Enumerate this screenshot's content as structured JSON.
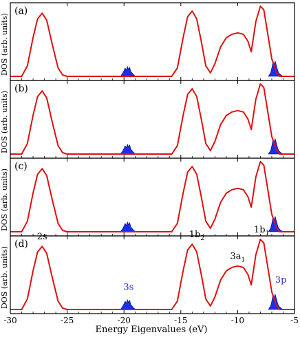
{
  "chart_data": {
    "type": "area",
    "xlabel": "Energy Eigenvalues (eV)",
    "ylabel": "DOS (arb. units)",
    "xlim": [
      -30,
      -5
    ],
    "xticks": [
      -30,
      -25,
      -20,
      -15,
      -10,
      -5
    ],
    "xtick_labels": [
      "-30",
      "-25",
      "-20",
      "-15",
      "-10",
      "-5"
    ],
    "grid": false,
    "colors": {
      "red_curve": "#dd1111",
      "blue_fill": "#1a2eee",
      "blue_edge": "#00008b",
      "peak_label_3s3p": "#2a2acc"
    },
    "panels": [
      {
        "label": "(a)",
        "red_curve": [
          [
            -29,
            0
          ],
          [
            -28.5,
            0.15
          ],
          [
            -28,
            0.55
          ],
          [
            -27.6,
            0.82
          ],
          [
            -27.2,
            0.9
          ],
          [
            -26.8,
            0.8
          ],
          [
            -26.3,
            0.45
          ],
          [
            -25.8,
            0.12
          ],
          [
            -25.4,
            0.02
          ],
          [
            -25,
            0
          ],
          [
            -15.8,
            0
          ],
          [
            -15.3,
            0.12
          ],
          [
            -14.8,
            0.55
          ],
          [
            -14.4,
            0.85
          ],
          [
            -14.0,
            0.93
          ],
          [
            -13.6,
            0.82
          ],
          [
            -13.2,
            0.5
          ],
          [
            -12.8,
            0.15
          ],
          [
            -12.4,
            0.05
          ],
          [
            -12.0,
            0.18
          ],
          [
            -11.5,
            0.42
          ],
          [
            -11.0,
            0.55
          ],
          [
            -10.5,
            0.6
          ],
          [
            -10.0,
            0.62
          ],
          [
            -9.5,
            0.6
          ],
          [
            -9.1,
            0.5
          ],
          [
            -8.8,
            0.35
          ],
          [
            -8.4,
            0.78
          ],
          [
            -8.0,
            1.0
          ],
          [
            -7.7,
            0.95
          ],
          [
            -7.4,
            0.65
          ],
          [
            -7.0,
            0.25
          ],
          [
            -6.6,
            0.06
          ],
          [
            -6.3,
            0
          ]
        ],
        "blue_3s": [
          [
            -20.3,
            0
          ],
          [
            -20.1,
            0.05
          ],
          [
            -20.0,
            0.08
          ],
          [
            -19.9,
            0.12
          ],
          [
            -19.8,
            0.09
          ],
          [
            -19.7,
            0.14
          ],
          [
            -19.6,
            0.1
          ],
          [
            -19.5,
            0.13
          ],
          [
            -19.4,
            0.07
          ],
          [
            -19.3,
            0.05
          ],
          [
            -19.2,
            0.03
          ],
          [
            -19.0,
            0
          ]
        ],
        "blue_3p": [
          [
            -7.3,
            0
          ],
          [
            -7.1,
            0.05
          ],
          [
            -7.0,
            0.12
          ],
          [
            -6.9,
            0.2
          ],
          [
            -6.8,
            0.17
          ],
          [
            -6.7,
            0.22
          ],
          [
            -6.6,
            0.16
          ],
          [
            -6.5,
            0.1
          ],
          [
            -6.4,
            0.05
          ],
          [
            -6.2,
            0.02
          ],
          [
            -6.0,
            0
          ]
        ]
      },
      {
        "label": "(b)",
        "red_curve": [
          [
            -29,
            0
          ],
          [
            -28.5,
            0.15
          ],
          [
            -28,
            0.55
          ],
          [
            -27.6,
            0.82
          ],
          [
            -27.2,
            0.9
          ],
          [
            -26.8,
            0.8
          ],
          [
            -26.3,
            0.45
          ],
          [
            -25.8,
            0.12
          ],
          [
            -25.4,
            0.02
          ],
          [
            -25,
            0
          ],
          [
            -15.8,
            0
          ],
          [
            -15.3,
            0.12
          ],
          [
            -14.8,
            0.55
          ],
          [
            -14.4,
            0.85
          ],
          [
            -14.0,
            0.93
          ],
          [
            -13.6,
            0.82
          ],
          [
            -13.2,
            0.5
          ],
          [
            -12.8,
            0.15
          ],
          [
            -12.4,
            0.05
          ],
          [
            -12.0,
            0.18
          ],
          [
            -11.5,
            0.42
          ],
          [
            -11.0,
            0.55
          ],
          [
            -10.5,
            0.6
          ],
          [
            -10.0,
            0.62
          ],
          [
            -9.5,
            0.6
          ],
          [
            -9.1,
            0.5
          ],
          [
            -8.8,
            0.35
          ],
          [
            -8.4,
            0.78
          ],
          [
            -8.0,
            1.0
          ],
          [
            -7.7,
            0.95
          ],
          [
            -7.4,
            0.65
          ],
          [
            -7.0,
            0.25
          ],
          [
            -6.6,
            0.06
          ],
          [
            -6.3,
            0
          ]
        ],
        "blue_3s": [
          [
            -20.3,
            0
          ],
          [
            -20.1,
            0.05
          ],
          [
            -20.0,
            0.08
          ],
          [
            -19.9,
            0.12
          ],
          [
            -19.8,
            0.09
          ],
          [
            -19.7,
            0.14
          ],
          [
            -19.6,
            0.1
          ],
          [
            -19.5,
            0.13
          ],
          [
            -19.4,
            0.07
          ],
          [
            -19.3,
            0.05
          ],
          [
            -19.2,
            0.03
          ],
          [
            -19.0,
            0
          ]
        ],
        "blue_3p": [
          [
            -7.3,
            0
          ],
          [
            -7.1,
            0.05
          ],
          [
            -7.0,
            0.12
          ],
          [
            -6.9,
            0.2
          ],
          [
            -6.8,
            0.17
          ],
          [
            -6.7,
            0.22
          ],
          [
            -6.6,
            0.16
          ],
          [
            -6.5,
            0.1
          ],
          [
            -6.4,
            0.05
          ],
          [
            -6.2,
            0.02
          ],
          [
            -6.0,
            0
          ]
        ]
      },
      {
        "label": "(c)",
        "red_curve": [
          [
            -29,
            0
          ],
          [
            -28.5,
            0.15
          ],
          [
            -28,
            0.55
          ],
          [
            -27.6,
            0.82
          ],
          [
            -27.2,
            0.9
          ],
          [
            -26.8,
            0.8
          ],
          [
            -26.3,
            0.45
          ],
          [
            -25.8,
            0.12
          ],
          [
            -25.4,
            0.02
          ],
          [
            -25,
            0
          ],
          [
            -15.8,
            0
          ],
          [
            -15.3,
            0.12
          ],
          [
            -14.8,
            0.55
          ],
          [
            -14.4,
            0.85
          ],
          [
            -14.0,
            0.93
          ],
          [
            -13.6,
            0.82
          ],
          [
            -13.2,
            0.5
          ],
          [
            -12.8,
            0.15
          ],
          [
            -12.4,
            0.05
          ],
          [
            -12.0,
            0.18
          ],
          [
            -11.5,
            0.42
          ],
          [
            -11.0,
            0.55
          ],
          [
            -10.5,
            0.6
          ],
          [
            -10.0,
            0.62
          ],
          [
            -9.5,
            0.6
          ],
          [
            -9.1,
            0.5
          ],
          [
            -8.8,
            0.35
          ],
          [
            -8.4,
            0.78
          ],
          [
            -8.0,
            1.0
          ],
          [
            -7.7,
            0.95
          ],
          [
            -7.4,
            0.65
          ],
          [
            -7.0,
            0.25
          ],
          [
            -6.6,
            0.06
          ],
          [
            -6.3,
            0
          ]
        ],
        "blue_3s": [
          [
            -20.3,
            0
          ],
          [
            -20.1,
            0.05
          ],
          [
            -20.0,
            0.08
          ],
          [
            -19.9,
            0.12
          ],
          [
            -19.8,
            0.09
          ],
          [
            -19.7,
            0.14
          ],
          [
            -19.6,
            0.1
          ],
          [
            -19.5,
            0.13
          ],
          [
            -19.4,
            0.07
          ],
          [
            -19.3,
            0.05
          ],
          [
            -19.2,
            0.03
          ],
          [
            -19.0,
            0
          ]
        ],
        "blue_3p": [
          [
            -7.3,
            0
          ],
          [
            -7.1,
            0.05
          ],
          [
            -7.0,
            0.12
          ],
          [
            -6.9,
            0.2
          ],
          [
            -6.8,
            0.17
          ],
          [
            -6.7,
            0.22
          ],
          [
            -6.6,
            0.16
          ],
          [
            -6.5,
            0.1
          ],
          [
            -6.4,
            0.05
          ],
          [
            -6.2,
            0.02
          ],
          [
            -6.0,
            0
          ]
        ]
      },
      {
        "label": "(d)",
        "red_curve": [
          [
            -29,
            0
          ],
          [
            -28.5,
            0.15
          ],
          [
            -28,
            0.55
          ],
          [
            -27.6,
            0.82
          ],
          [
            -27.2,
            0.9
          ],
          [
            -26.8,
            0.8
          ],
          [
            -26.3,
            0.45
          ],
          [
            -25.8,
            0.12
          ],
          [
            -25.4,
            0.02
          ],
          [
            -25,
            0
          ],
          [
            -15.8,
            0
          ],
          [
            -15.3,
            0.12
          ],
          [
            -14.8,
            0.55
          ],
          [
            -14.4,
            0.85
          ],
          [
            -14.0,
            0.93
          ],
          [
            -13.6,
            0.82
          ],
          [
            -13.2,
            0.5
          ],
          [
            -12.8,
            0.15
          ],
          [
            -12.4,
            0.05
          ],
          [
            -12.0,
            0.18
          ],
          [
            -11.5,
            0.42
          ],
          [
            -11.0,
            0.55
          ],
          [
            -10.5,
            0.6
          ],
          [
            -10.0,
            0.62
          ],
          [
            -9.5,
            0.6
          ],
          [
            -9.1,
            0.5
          ],
          [
            -8.8,
            0.35
          ],
          [
            -8.4,
            0.78
          ],
          [
            -8.0,
            1.0
          ],
          [
            -7.7,
            0.95
          ],
          [
            -7.4,
            0.65
          ],
          [
            -7.0,
            0.25
          ],
          [
            -6.6,
            0.06
          ],
          [
            -6.3,
            0
          ]
        ],
        "blue_3s": [
          [
            -20.3,
            0
          ],
          [
            -20.1,
            0.05
          ],
          [
            -20.0,
            0.08
          ],
          [
            -19.9,
            0.12
          ],
          [
            -19.8,
            0.09
          ],
          [
            -19.7,
            0.14
          ],
          [
            -19.6,
            0.1
          ],
          [
            -19.5,
            0.13
          ],
          [
            -19.4,
            0.07
          ],
          [
            -19.3,
            0.05
          ],
          [
            -19.2,
            0.03
          ],
          [
            -19.0,
            0
          ]
        ],
        "blue_3p": [
          [
            -7.3,
            0
          ],
          [
            -7.1,
            0.05
          ],
          [
            -7.0,
            0.12
          ],
          [
            -6.9,
            0.2
          ],
          [
            -6.8,
            0.17
          ],
          [
            -6.7,
            0.22
          ],
          [
            -6.6,
            0.16
          ],
          [
            -6.5,
            0.1
          ],
          [
            -6.4,
            0.05
          ],
          [
            -6.2,
            0.02
          ],
          [
            -6.0,
            0
          ]
        ],
        "annotations": [
          {
            "text": "2s",
            "sub": "",
            "x": -27.2,
            "y": 1.0,
            "color": "black"
          },
          {
            "text": "1b",
            "sub": "2",
            "x": -13.6,
            "y": 1.03,
            "color": "black"
          },
          {
            "text": "3a",
            "sub": "1",
            "x": -10.0,
            "y": 0.72,
            "color": "black"
          },
          {
            "text": "1b",
            "sub": "1",
            "x": -7.9,
            "y": 1.1,
            "color": "black"
          },
          {
            "text": "3s",
            "sub": "",
            "x": -19.6,
            "y": 0.28,
            "color": "blue"
          },
          {
            "text": "3p",
            "sub": "",
            "x": -6.2,
            "y": 0.38,
            "color": "blue"
          }
        ]
      }
    ]
  }
}
